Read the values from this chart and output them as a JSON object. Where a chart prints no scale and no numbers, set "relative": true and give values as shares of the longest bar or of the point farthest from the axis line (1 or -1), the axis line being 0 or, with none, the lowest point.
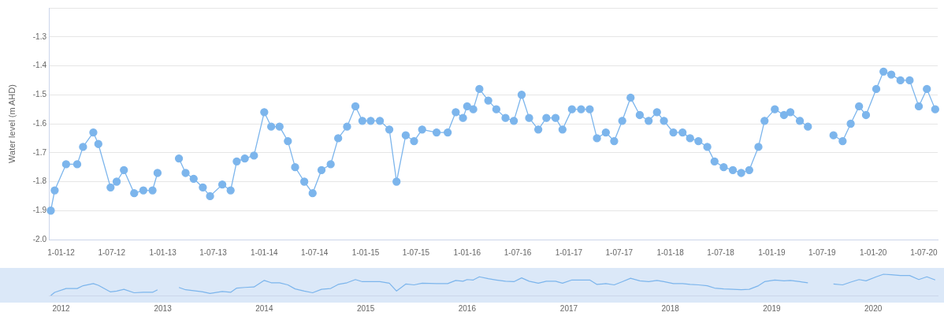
{
  "chart_data": [
    {
      "type": "line",
      "ylabel": "Water level (m AHD)",
      "color": "#7cb5ec",
      "marker": "circle",
      "grid": "y",
      "legend": false,
      "x": [
        "2011-11-25",
        "2011-12-09",
        "2012-01-19",
        "2012-02-28",
        "2012-03-20",
        "2012-04-26",
        "2012-05-14",
        "2012-06-27",
        "2012-07-19",
        "2012-08-14",
        "2012-09-20",
        "2012-10-23",
        "2012-11-25",
        "2012-12-13",
        "2013-01-19",
        "2013-02-28",
        "2013-03-24",
        "2013-04-22",
        "2013-05-25",
        "2013-06-20",
        "2013-08-03",
        "2013-09-02",
        "2013-09-24",
        "2013-10-23",
        "2013-11-25",
        "2014-01-01",
        "2014-01-26",
        "2014-02-25",
        "2014-03-27",
        "2014-04-22",
        "2014-05-25",
        "2014-06-24",
        "2014-07-26",
        "2014-08-28",
        "2014-09-24",
        "2014-10-26",
        "2014-11-25",
        "2014-12-20",
        "2015-01-19",
        "2015-02-21",
        "2015-03-27",
        "2015-04-22",
        "2015-05-25",
        "2015-06-24",
        "2015-07-23",
        "2015-09-13",
        "2015-10-23",
        "2015-11-21",
        "2015-12-17",
        "2016-01-01",
        "2016-01-23",
        "2016-02-14",
        "2016-03-17",
        "2016-04-15",
        "2016-05-18",
        "2016-06-17",
        "2016-07-15",
        "2016-08-11",
        "2016-09-13",
        "2016-10-12",
        "2016-11-14",
        "2016-12-09",
        "2017-01-12",
        "2017-02-14",
        "2017-03-17",
        "2017-04-12",
        "2017-05-14",
        "2017-06-13",
        "2017-07-12",
        "2017-08-11",
        "2017-09-13",
        "2017-10-15",
        "2017-11-14",
        "2017-12-09",
        "2018-01-12",
        "2018-02-14",
        "2018-03-13",
        "2018-04-12",
        "2018-05-14",
        "2018-06-09",
        "2018-07-12",
        "2018-08-14",
        "2018-09-13",
        "2018-10-12",
        "2018-11-14",
        "2018-12-06",
        "2019-01-12",
        "2019-02-14",
        "2019-03-09",
        "2019-04-12",
        "2019-05-11",
        "2019-07-01",
        "2019-08-11",
        "2019-09-13",
        "2019-10-12",
        "2019-11-11",
        "2019-12-06",
        "2020-01-12",
        "2020-02-07",
        "2020-03-06",
        "2020-04-08",
        "2020-05-11",
        "2020-06-13",
        "2020-07-12",
        "2020-08-11"
      ],
      "values": [
        -1.9,
        -1.83,
        -1.74,
        -1.74,
        -1.68,
        -1.63,
        -1.67,
        -1.82,
        -1.8,
        -1.76,
        -1.84,
        -1.83,
        -1.83,
        -1.77,
        null,
        -1.72,
        -1.77,
        -1.79,
        -1.82,
        -1.85,
        -1.81,
        -1.83,
        -1.73,
        -1.72,
        -1.71,
        -1.56,
        -1.61,
        -1.61,
        -1.66,
        -1.75,
        -1.8,
        -1.84,
        -1.76,
        -1.74,
        -1.65,
        -1.61,
        -1.54,
        -1.59,
        -1.59,
        -1.59,
        -1.62,
        -1.8,
        -1.64,
        -1.66,
        -1.62,
        -1.63,
        -1.63,
        -1.56,
        -1.58,
        -1.54,
        -1.55,
        -1.48,
        -1.52,
        -1.55,
        -1.58,
        -1.59,
        -1.5,
        -1.58,
        -1.62,
        -1.58,
        -1.58,
        -1.62,
        -1.55,
        -1.55,
        -1.55,
        -1.65,
        -1.63,
        -1.66,
        -1.59,
        -1.51,
        -1.57,
        -1.59,
        -1.56,
        -1.59,
        -1.63,
        -1.63,
        -1.65,
        -1.66,
        -1.68,
        -1.73,
        -1.75,
        -1.76,
        -1.77,
        -1.76,
        -1.68,
        -1.59,
        -1.55,
        -1.57,
        -1.56,
        -1.59,
        -1.61,
        null,
        -1.64,
        -1.66,
        -1.6,
        -1.54,
        -1.57,
        -1.48,
        -1.42,
        -1.43,
        -1.45,
        -1.45,
        -1.54,
        -1.48,
        -1.55
      ],
      "xlim": [
        "2011-11-18",
        "2020-08-20"
      ],
      "xticks": [
        {
          "value": "2012-01-01",
          "label": "1-01-12"
        },
        {
          "value": "2012-07-01",
          "label": "1-07-12"
        },
        {
          "value": "2013-01-01",
          "label": "1-01-13"
        },
        {
          "value": "2013-07-01",
          "label": "1-07-13"
        },
        {
          "value": "2014-01-01",
          "label": "1-01-14"
        },
        {
          "value": "2014-07-01",
          "label": "1-07-14"
        },
        {
          "value": "2015-01-01",
          "label": "1-01-15"
        },
        {
          "value": "2015-07-01",
          "label": "1-07-15"
        },
        {
          "value": "2016-01-01",
          "label": "1-01-16"
        },
        {
          "value": "2016-07-01",
          "label": "1-07-16"
        },
        {
          "value": "2017-01-01",
          "label": "1-01-17"
        },
        {
          "value": "2017-07-01",
          "label": "1-07-17"
        },
        {
          "value": "2018-01-01",
          "label": "1-01-18"
        },
        {
          "value": "2018-07-01",
          "label": "1-07-18"
        },
        {
          "value": "2019-01-01",
          "label": "1-01-19"
        },
        {
          "value": "2019-07-01",
          "label": "1-07-19"
        },
        {
          "value": "2020-01-01",
          "label": "1-01-20"
        },
        {
          "value": "2020-07-01",
          "label": "1-07-20"
        }
      ],
      "ylim": [
        -2.0,
        -1.2
      ],
      "yticks": [
        {
          "value": -2,
          "label": "-2.0"
        },
        -1.9,
        -1.8,
        -1.7,
        -1.6,
        -1.5,
        -1.4,
        -1.3,
        {
          "value": -1.2,
          "label": null
        }
      ]
    },
    {
      "type": "line",
      "color": "#7cb5ec",
      "marker": "none",
      "relative": true,
      "legend": false,
      "x": [
        "2011-11-25",
        "2011-12-09",
        "2012-01-19",
        "2012-02-28",
        "2012-03-20",
        "2012-04-26",
        "2012-05-14",
        "2012-06-27",
        "2012-07-19",
        "2012-08-14",
        "2012-09-20",
        "2012-10-23",
        "2012-11-25",
        "2012-12-13",
        "2013-01-19",
        "2013-02-28",
        "2013-03-24",
        "2013-04-22",
        "2013-05-25",
        "2013-06-20",
        "2013-08-03",
        "2013-09-02",
        "2013-09-24",
        "2013-10-23",
        "2013-11-25",
        "2014-01-01",
        "2014-01-26",
        "2014-02-25",
        "2014-03-27",
        "2014-04-22",
        "2014-05-25",
        "2014-06-24",
        "2014-07-26",
        "2014-08-28",
        "2014-09-24",
        "2014-10-26",
        "2014-11-25",
        "2014-12-20",
        "2015-01-19",
        "2015-02-21",
        "2015-03-27",
        "2015-04-22",
        "2015-05-25",
        "2015-06-24",
        "2015-07-23",
        "2015-09-13",
        "2015-10-23",
        "2015-11-21",
        "2015-12-17",
        "2016-01-01",
        "2016-01-23",
        "2016-02-14",
        "2016-03-17",
        "2016-04-15",
        "2016-05-18",
        "2016-06-17",
        "2016-07-15",
        "2016-08-11",
        "2016-09-13",
        "2016-10-12",
        "2016-11-14",
        "2016-12-09",
        "2017-01-12",
        "2017-02-14",
        "2017-03-17",
        "2017-04-12",
        "2017-05-14",
        "2017-06-13",
        "2017-07-12",
        "2017-08-11",
        "2017-09-13",
        "2017-10-15",
        "2017-11-14",
        "2017-12-09",
        "2018-01-12",
        "2018-02-14",
        "2018-03-13",
        "2018-04-12",
        "2018-05-14",
        "2018-06-09",
        "2018-07-12",
        "2018-08-14",
        "2018-09-13",
        "2018-10-12",
        "2018-11-14",
        "2018-12-06",
        "2019-01-12",
        "2019-02-14",
        "2019-03-09",
        "2019-04-12",
        "2019-05-11",
        "2019-07-01",
        "2019-08-11",
        "2019-09-13",
        "2019-10-12",
        "2019-11-11",
        "2019-12-06",
        "2020-01-12",
        "2020-02-07",
        "2020-03-06",
        "2020-04-08",
        "2020-05-11",
        "2020-06-13",
        "2020-07-12",
        "2020-08-11"
      ],
      "values": [
        0,
        0.15,
        0.33,
        0.33,
        0.46,
        0.56,
        0.48,
        0.17,
        0.21,
        0.29,
        0.13,
        0.15,
        0.15,
        0.27,
        null,
        0.38,
        0.27,
        0.23,
        0.17,
        0.1,
        0.19,
        0.15,
        0.35,
        0.38,
        0.4,
        0.71,
        0.6,
        0.6,
        0.5,
        0.31,
        0.21,
        0.13,
        0.29,
        0.33,
        0.52,
        0.6,
        0.75,
        0.65,
        0.65,
        0.65,
        0.58,
        0.21,
        0.54,
        0.5,
        0.58,
        0.56,
        0.56,
        0.71,
        0.67,
        0.75,
        0.73,
        0.88,
        0.79,
        0.73,
        0.67,
        0.65,
        0.83,
        0.67,
        0.58,
        0.67,
        0.67,
        0.58,
        0.73,
        0.73,
        0.73,
        0.52,
        0.56,
        0.5,
        0.65,
        0.81,
        0.69,
        0.65,
        0.71,
        0.65,
        0.56,
        0.56,
        0.52,
        0.5,
        0.46,
        0.35,
        0.31,
        0.29,
        0.27,
        0.29,
        0.46,
        0.65,
        0.73,
        0.69,
        0.71,
        0.65,
        0.6,
        null,
        0.54,
        0.5,
        0.63,
        0.75,
        0.69,
        0.88,
        1,
        0.98,
        0.94,
        0.94,
        0.75,
        0.88,
        0.73
      ],
      "xlim": [
        "2011-11-18",
        "2020-08-20"
      ],
      "xticks": [
        "2012",
        "2013",
        "2014",
        "2015",
        "2016",
        "2017",
        "2018",
        "2019",
        "2020"
      ]
    }
  ]
}
